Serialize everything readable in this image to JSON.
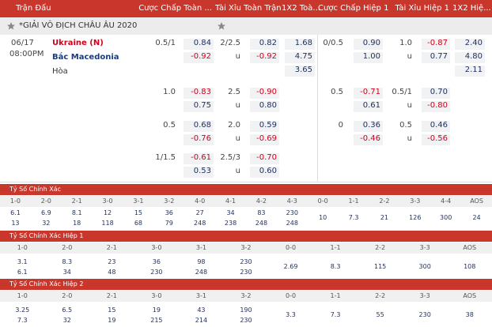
{
  "header": {
    "columns": [
      "Trận Đấu",
      "Cược Chấp Toàn ...",
      "Tài Xỉu Toàn Trận",
      "1X2 Toà...",
      "Cược Chấp Hiệp 1",
      "Tài Xỉu Hiệp 1",
      "1X2 Hiệ..."
    ]
  },
  "league": {
    "name": "*GIẢI VÔ ĐỊCH CHÂU ÂU 2020"
  },
  "match": {
    "date": "06/17",
    "time": "08:00PM",
    "home": "Ukraine (N)",
    "away": "Bắc Macedonia",
    "draw": "Hòa"
  },
  "odds": {
    "full_handicap": [
      {
        "line": "0.5/1",
        "home": "0.84",
        "away": "-0.92"
      },
      {
        "line": "1.0",
        "home": "-0.83",
        "away": "0.75"
      },
      {
        "line": "0.5",
        "home": "0.68",
        "away": "-0.76"
      },
      {
        "line": "1/1.5",
        "home": "-0.61",
        "away": "0.53"
      }
    ],
    "full_over_under": [
      {
        "line": "2/2.5",
        "over": "0.82",
        "under_label": "u",
        "under": "-0.92"
      },
      {
        "line": "2.5",
        "over": "-0.90",
        "under_label": "u",
        "under": "0.80"
      },
      {
        "line": "2.0",
        "over": "0.59",
        "under_label": "u",
        "under": "-0.69"
      },
      {
        "line": "2.5/3",
        "over": "-0.70",
        "under_label": "u",
        "under": "0.60"
      }
    ],
    "full_1x2": {
      "home": "1.68",
      "away": "4.75",
      "draw": "3.65"
    },
    "half1_handicap": [
      {
        "line": "0/0.5",
        "home": "0.90",
        "away": "1.00"
      },
      {
        "line": "0.5",
        "home": "-0.71",
        "away": "0.61"
      },
      {
        "line": "0",
        "home": "0.36",
        "away": "-0.46"
      }
    ],
    "half1_over_under": [
      {
        "line": "1.0",
        "over": "-0.87",
        "under_label": "u",
        "under": "0.77"
      },
      {
        "line": "0.5/1",
        "over": "0.70",
        "under_label": "u",
        "under": "-0.80"
      },
      {
        "line": "0.5",
        "over": "0.46",
        "under_label": "u",
        "under": "-0.56"
      }
    ],
    "half1_1x2": {
      "home": "2.40",
      "away": "4.80",
      "draw": "2.11"
    }
  },
  "correct_score": [
    {
      "title": "Tỷ Số Chính Xác",
      "columns": [
        {
          "score": "1-0",
          "values": [
            "6.1",
            "13"
          ]
        },
        {
          "score": "2-0",
          "values": [
            "6.9",
            "32"
          ]
        },
        {
          "score": "2-1",
          "values": [
            "8.1",
            "18"
          ]
        },
        {
          "score": "3-0",
          "values": [
            "12",
            "118"
          ]
        },
        {
          "score": "3-1",
          "values": [
            "15",
            "68"
          ]
        },
        {
          "score": "3-2",
          "values": [
            "36",
            "79"
          ]
        },
        {
          "score": "4-0",
          "values": [
            "27",
            "248"
          ]
        },
        {
          "score": "4-1",
          "values": [
            "34",
            "238"
          ]
        },
        {
          "score": "4-2",
          "values": [
            "83",
            "248"
          ]
        },
        {
          "score": "4-3",
          "values": [
            "230",
            "248"
          ]
        },
        {
          "score": "0-0",
          "values": [
            "10"
          ]
        },
        {
          "score": "1-1",
          "values": [
            "7.3"
          ]
        },
        {
          "score": "2-2",
          "values": [
            "21"
          ]
        },
        {
          "score": "3-3",
          "values": [
            "126"
          ]
        },
        {
          "score": "4-4",
          "values": [
            "300"
          ]
        },
        {
          "score": "AOS",
          "values": [
            "24"
          ]
        }
      ]
    },
    {
      "title": "Tỷ Số Chính Xác Hiệp 1",
      "columns": [
        {
          "score": "1-0",
          "values": [
            "3.1",
            "6.1"
          ]
        },
        {
          "score": "2-0",
          "values": [
            "8.3",
            "34"
          ]
        },
        {
          "score": "2-1",
          "values": [
            "23",
            "48"
          ]
        },
        {
          "score": "3-0",
          "values": [
            "36",
            "230"
          ]
        },
        {
          "score": "3-1",
          "values": [
            "98",
            "248"
          ]
        },
        {
          "score": "3-2",
          "values": [
            "230",
            "230"
          ]
        },
        {
          "score": "0-0",
          "values": [
            "2.69"
          ]
        },
        {
          "score": "1-1",
          "values": [
            "8.3"
          ]
        },
        {
          "score": "2-2",
          "values": [
            "115"
          ]
        },
        {
          "score": "3-3",
          "values": [
            "300"
          ]
        },
        {
          "score": "AOS",
          "values": [
            "108"
          ]
        }
      ]
    },
    {
      "title": "Tỷ Số Chính Xác Hiệp 2",
      "columns": [
        {
          "score": "1-0",
          "values": [
            "3.25",
            "7.3"
          ]
        },
        {
          "score": "2-0",
          "values": [
            "6.5",
            "32"
          ]
        },
        {
          "score": "2-1",
          "values": [
            "15",
            "19"
          ]
        },
        {
          "score": "3-0",
          "values": [
            "19",
            "215"
          ]
        },
        {
          "score": "3-1",
          "values": [
            "43",
            "214"
          ]
        },
        {
          "score": "3-2",
          "values": [
            "190",
            "230"
          ]
        },
        {
          "score": "0-0",
          "values": [
            "3.3"
          ]
        },
        {
          "score": "1-1",
          "values": [
            "7.3"
          ]
        },
        {
          "score": "2-2",
          "values": [
            "55"
          ]
        },
        {
          "score": "3-3",
          "values": [
            "230"
          ]
        },
        {
          "score": "AOS",
          "values": [
            "38"
          ]
        }
      ]
    }
  ]
}
